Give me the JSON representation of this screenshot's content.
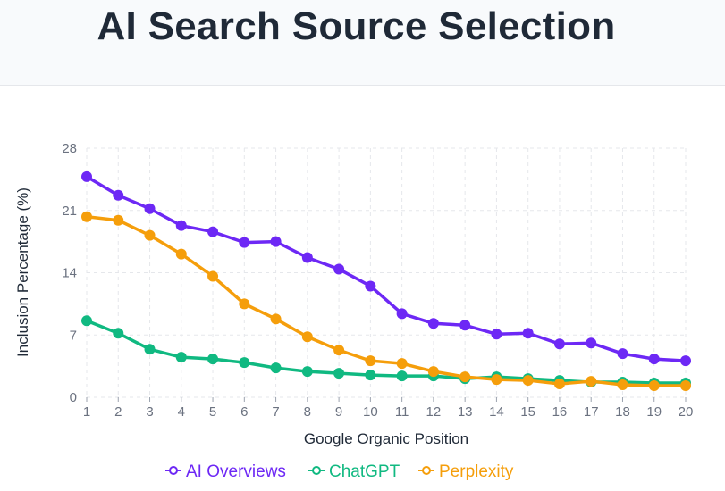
{
  "header": {
    "title": "AI Search Source Selection"
  },
  "colors": {
    "ai_overviews": "#6d28f5",
    "chatgpt": "#10b981",
    "perplexity": "#f59e0b",
    "grid": "#e5e7eb",
    "header_bg": "#f8fafc"
  },
  "chart_data": {
    "type": "line",
    "title": "AI Search Source Selection",
    "xlabel": "Google Organic Position",
    "ylabel": "Inclusion Percentage (%)",
    "x": [
      1,
      2,
      3,
      4,
      5,
      6,
      7,
      8,
      9,
      10,
      11,
      12,
      13,
      14,
      15,
      16,
      17,
      18,
      19,
      20
    ],
    "y_ticks": [
      0,
      7,
      14,
      21,
      28
    ],
    "ylim": [
      0,
      28
    ],
    "grid": true,
    "legend_position": "bottom",
    "series": [
      {
        "name": "AI Overviews",
        "color": "#6d28f5",
        "values": [
          24.8,
          22.7,
          21.2,
          19.3,
          18.6,
          17.4,
          17.5,
          15.7,
          14.4,
          12.5,
          9.4,
          8.3,
          8.1,
          7.1,
          7.2,
          6.0,
          6.1,
          4.9,
          4.3,
          4.1
        ]
      },
      {
        "name": "ChatGPT",
        "color": "#10b981",
        "values": [
          8.6,
          7.2,
          5.4,
          4.5,
          4.3,
          3.9,
          3.3,
          2.9,
          2.7,
          2.5,
          2.4,
          2.4,
          2.1,
          2.3,
          2.1,
          1.9,
          1.7,
          1.7,
          1.6,
          1.6
        ]
      },
      {
        "name": "Perplexity",
        "color": "#f59e0b",
        "values": [
          20.3,
          19.9,
          18.2,
          16.1,
          13.6,
          10.5,
          8.8,
          6.8,
          5.3,
          4.1,
          3.8,
          2.9,
          2.3,
          2.0,
          1.9,
          1.5,
          1.8,
          1.4,
          1.3,
          1.3
        ]
      }
    ]
  }
}
